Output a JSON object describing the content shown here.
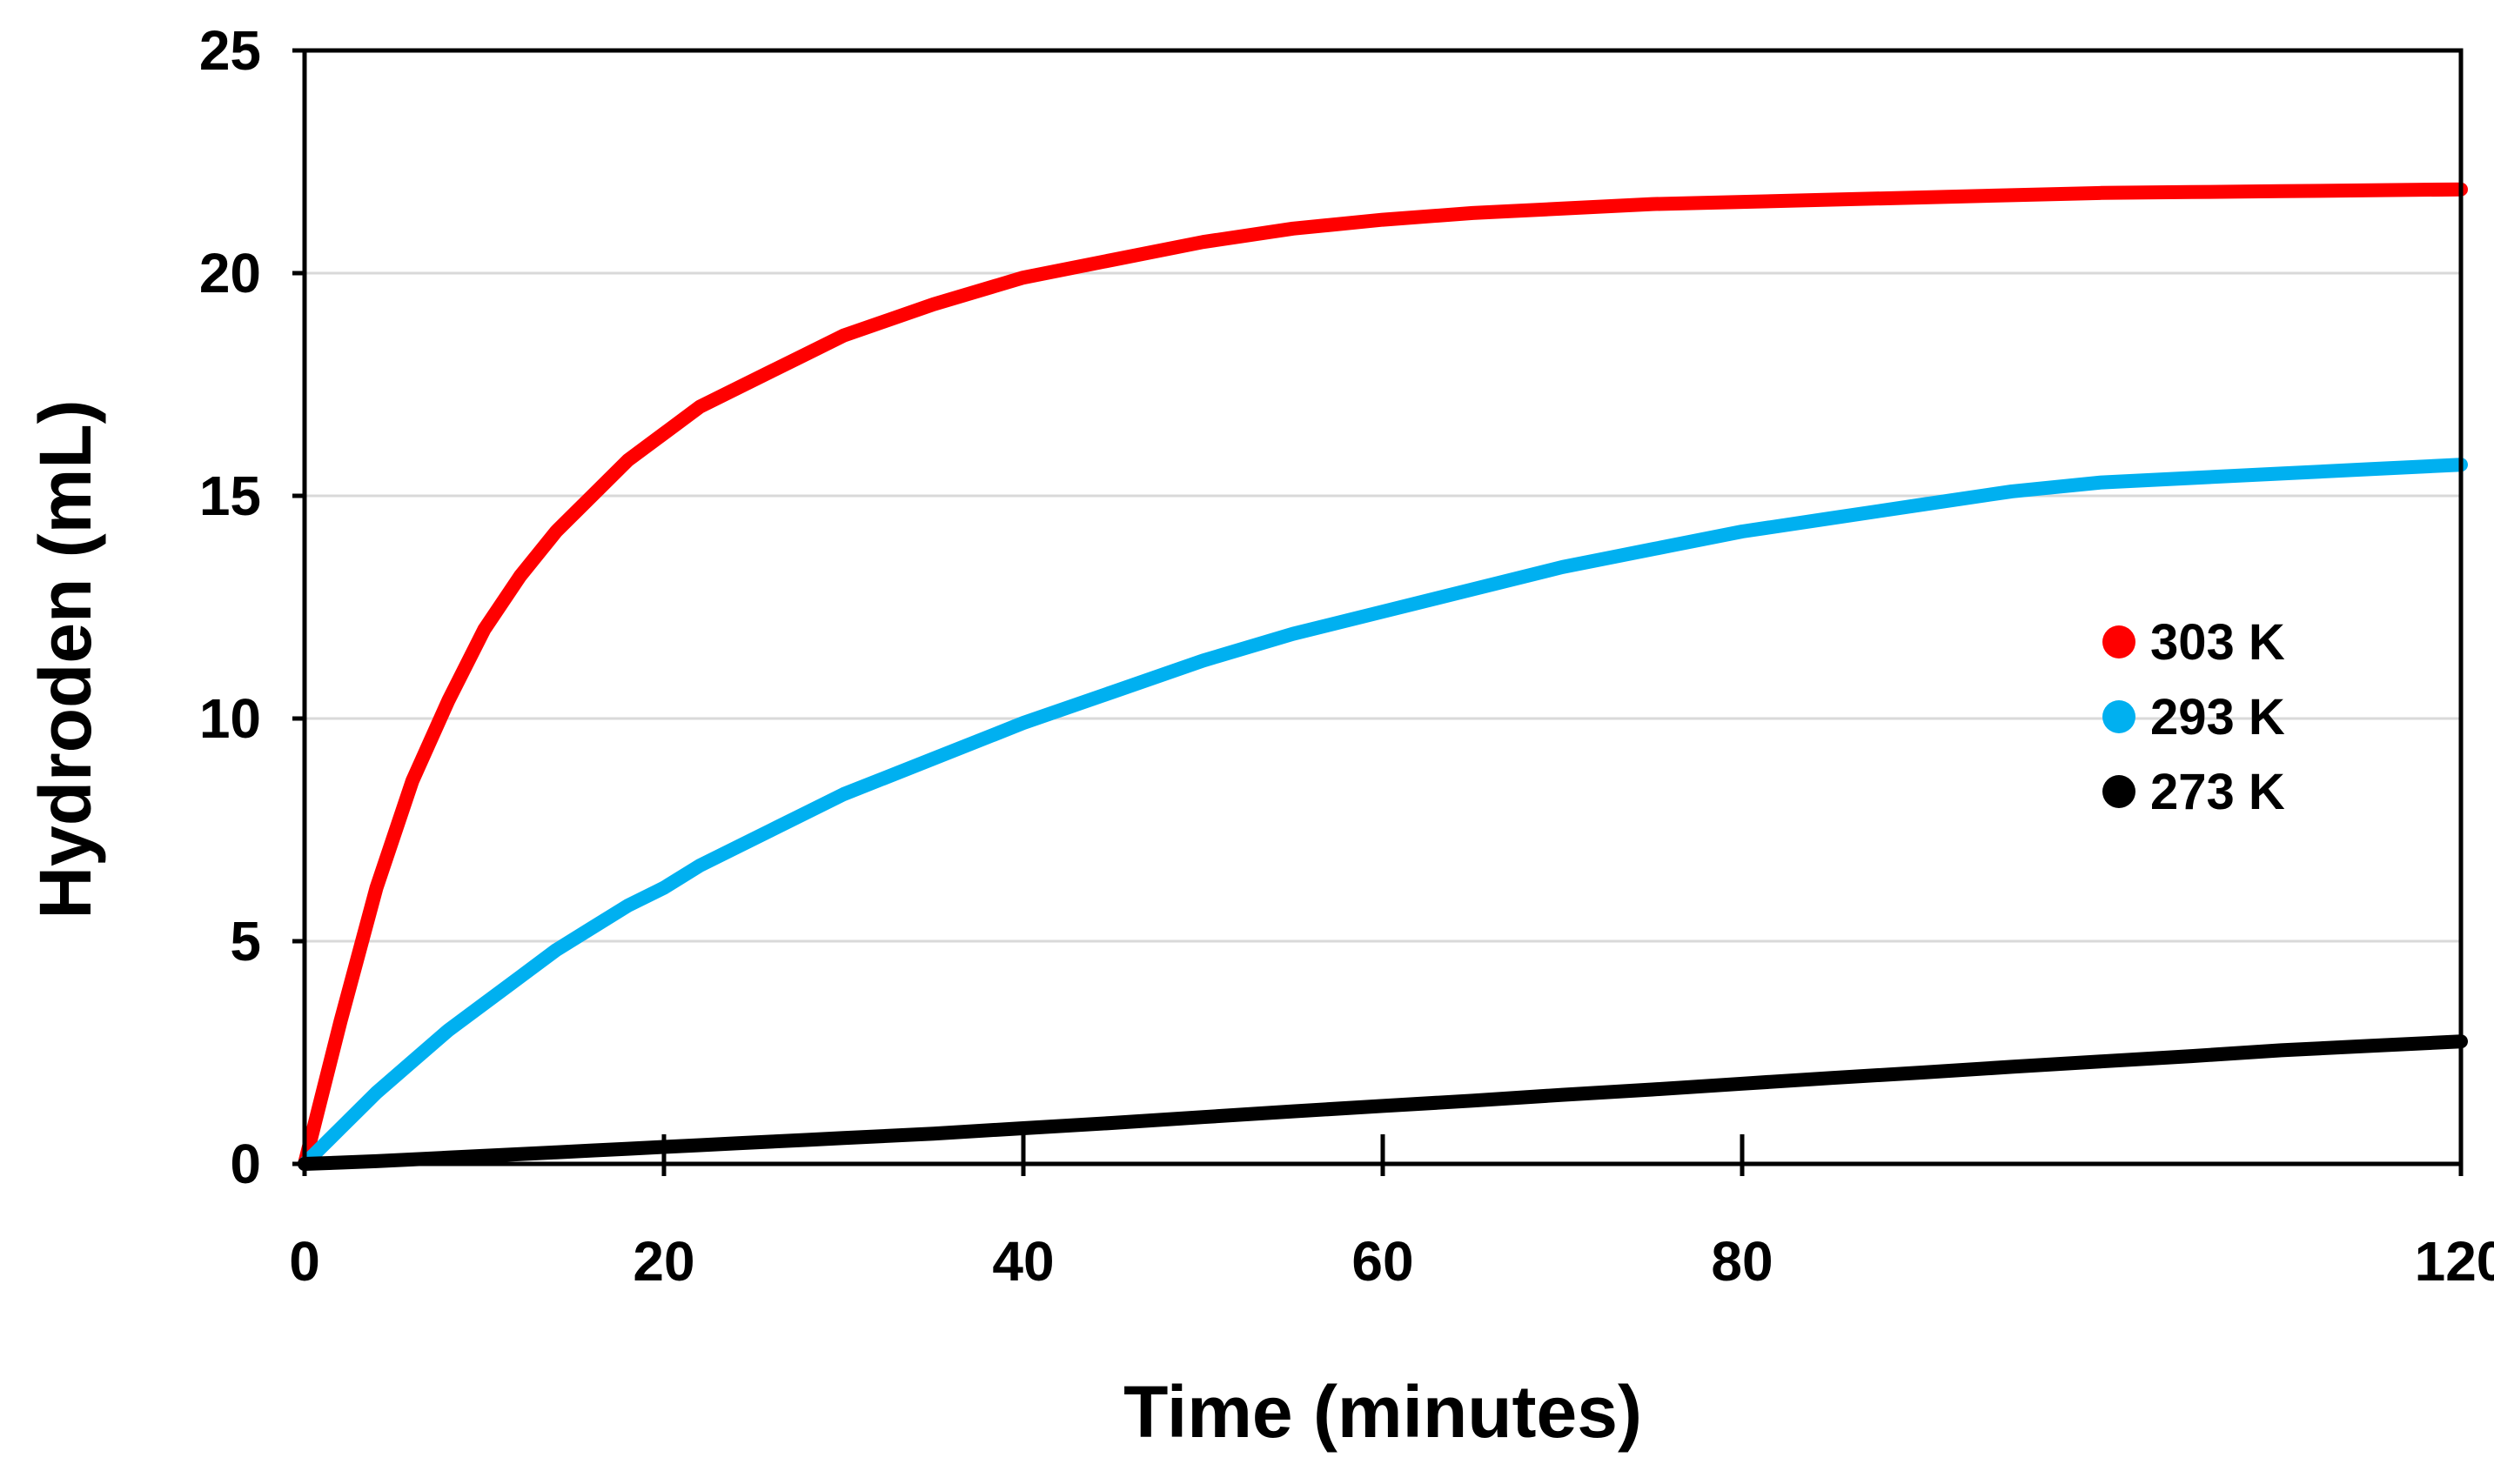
{
  "chart_data": {
    "type": "line",
    "title": "",
    "xlabel": "Time (minutes)",
    "ylabel": "Hydroden (mL)",
    "xlim": [
      0,
      120
    ],
    "ylim": [
      0,
      25
    ],
    "xticks": [
      0,
      20,
      40,
      60,
      80,
      120
    ],
    "yticks": [
      0,
      5,
      10,
      15,
      20,
      25
    ],
    "grid": "horizontal",
    "legend_position": "right",
    "x": [
      0,
      2,
      4,
      6,
      8,
      10,
      12,
      14,
      16,
      18,
      20,
      22,
      24,
      26,
      28,
      30,
      35,
      40,
      45,
      50,
      55,
      60,
      65,
      70,
      75,
      80,
      85,
      90,
      95,
      100,
      105,
      110,
      115,
      120
    ],
    "series": [
      {
        "name": "303 K",
        "color": "#ff0000",
        "values": [
          0,
          3.2,
          6.2,
          8.6,
          10.4,
          12.0,
          13.2,
          14.2,
          15.0,
          15.8,
          16.4,
          17.0,
          17.4,
          17.8,
          18.2,
          18.6,
          19.3,
          19.9,
          20.3,
          20.7,
          21.0,
          21.2,
          21.35,
          21.45,
          21.55,
          21.6,
          21.65,
          21.7,
          21.75,
          21.8,
          21.82,
          21.84,
          21.86,
          21.88
        ]
      },
      {
        "name": "293 K",
        "color": "#00b0f0",
        "values": [
          0,
          0.8,
          1.6,
          2.3,
          3.0,
          3.6,
          4.2,
          4.8,
          5.3,
          5.8,
          6.2,
          6.7,
          7.1,
          7.5,
          7.9,
          8.3,
          9.1,
          9.9,
          10.6,
          11.3,
          11.9,
          12.4,
          12.9,
          13.4,
          13.8,
          14.2,
          14.5,
          14.8,
          15.1,
          15.3,
          15.4,
          15.5,
          15.6,
          15.7
        ]
      },
      {
        "name": "273 K",
        "color": "#000000",
        "values": [
          0,
          0.03,
          0.06,
          0.1,
          0.14,
          0.18,
          0.22,
          0.26,
          0.3,
          0.34,
          0.38,
          0.42,
          0.46,
          0.5,
          0.54,
          0.58,
          0.68,
          0.8,
          0.92,
          1.05,
          1.18,
          1.3,
          1.42,
          1.55,
          1.67,
          1.8,
          1.93,
          2.05,
          2.18,
          2.3,
          2.42,
          2.55,
          2.65,
          2.75
        ]
      }
    ]
  }
}
